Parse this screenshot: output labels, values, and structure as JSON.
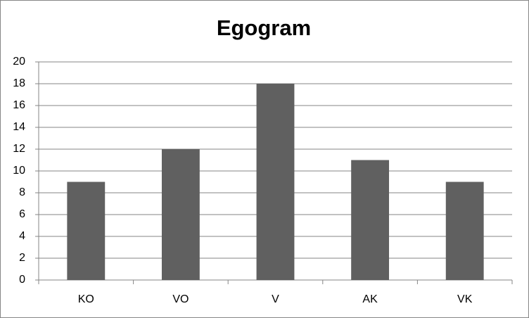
{
  "chart_data": {
    "type": "bar",
    "title": "Egogram",
    "categories": [
      "KO",
      "VO",
      "V",
      "AK",
      "VK"
    ],
    "values": [
      9,
      12,
      18,
      11,
      9
    ],
    "color": "#606060",
    "ylim": [
      0,
      20
    ],
    "yticks": [
      0,
      2,
      4,
      6,
      8,
      10,
      12,
      14,
      16,
      18,
      20
    ],
    "grid": true
  }
}
